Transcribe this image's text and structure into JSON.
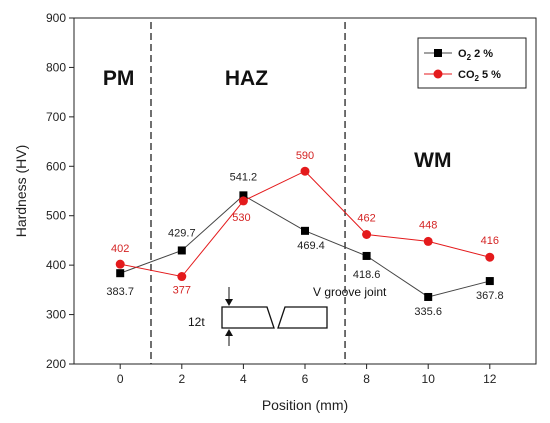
{
  "chart_data": {
    "type": "line",
    "xlabel": "Position (mm)",
    "ylabel": "Hardness (HV)",
    "xlim": [
      -1.5,
      13.5
    ],
    "ylim": [
      200,
      900
    ],
    "x_ticks": [
      "0",
      "2",
      "4",
      "6",
      "8",
      "10",
      "12"
    ],
    "y_ticks": [
      "200",
      "300",
      "400",
      "500",
      "600",
      "700",
      "800",
      "900"
    ],
    "grid": false,
    "legend_position": "top-right",
    "x": [
      0,
      2,
      4,
      6,
      8,
      10,
      12
    ],
    "series": [
      {
        "name_main": "O",
        "name_sub": "2",
        "name_rest": " 2 %",
        "color": "#000000",
        "marker": "square",
        "values": [
          383.7,
          429.7,
          541.2,
          469.4,
          418.6,
          335.6,
          367.8
        ],
        "labels": [
          "383.7",
          "429.7",
          "541.2",
          "469.4",
          "418.6",
          "335.6",
          "367.8"
        ]
      },
      {
        "name_main": "CO",
        "name_sub": "2",
        "name_rest": " 5 %",
        "color": "#e41a1c",
        "marker": "circle",
        "values": [
          402,
          377,
          530,
          590,
          462,
          448,
          416
        ],
        "labels": [
          "402",
          "377",
          "530",
          "590",
          "462",
          "448",
          "416"
        ]
      }
    ],
    "regions": [
      "PM",
      "HAZ",
      "WM"
    ],
    "region_boundaries": [
      1,
      7.3
    ],
    "annotations": {
      "joint": "V groove joint",
      "thickness": "12t"
    }
  }
}
